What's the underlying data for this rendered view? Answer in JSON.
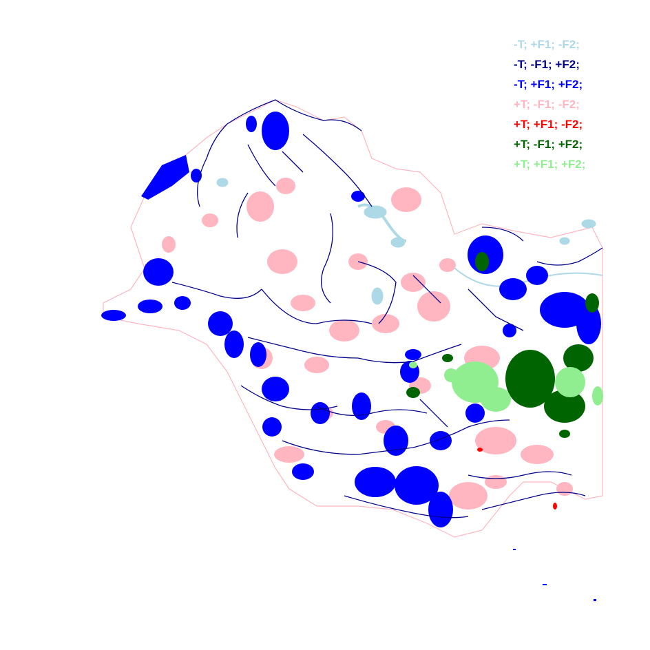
{
  "map": {
    "background_color": "#ffffff",
    "river_color": "#00008b",
    "region_outline_color": "#add8e6"
  },
  "legend": {
    "items": [
      {
        "label": "-T; +F1; -F2;",
        "color": "#add8e6"
      },
      {
        "label": "-T; -F1; +F2;",
        "color": "#00008b"
      },
      {
        "label": "-T; +F1; +F2;",
        "color": "#0000ff"
      },
      {
        "label": "+T; -F1; -F2;",
        "color": "#ffb6c1"
      },
      {
        "label": "+T; +F1; -F2;",
        "color": "#ff0000"
      },
      {
        "label": "+T; -F1; +F2;",
        "color": "#006400"
      },
      {
        "label": "+T; +F1; +F2;",
        "color": "#90ee90"
      }
    ]
  }
}
